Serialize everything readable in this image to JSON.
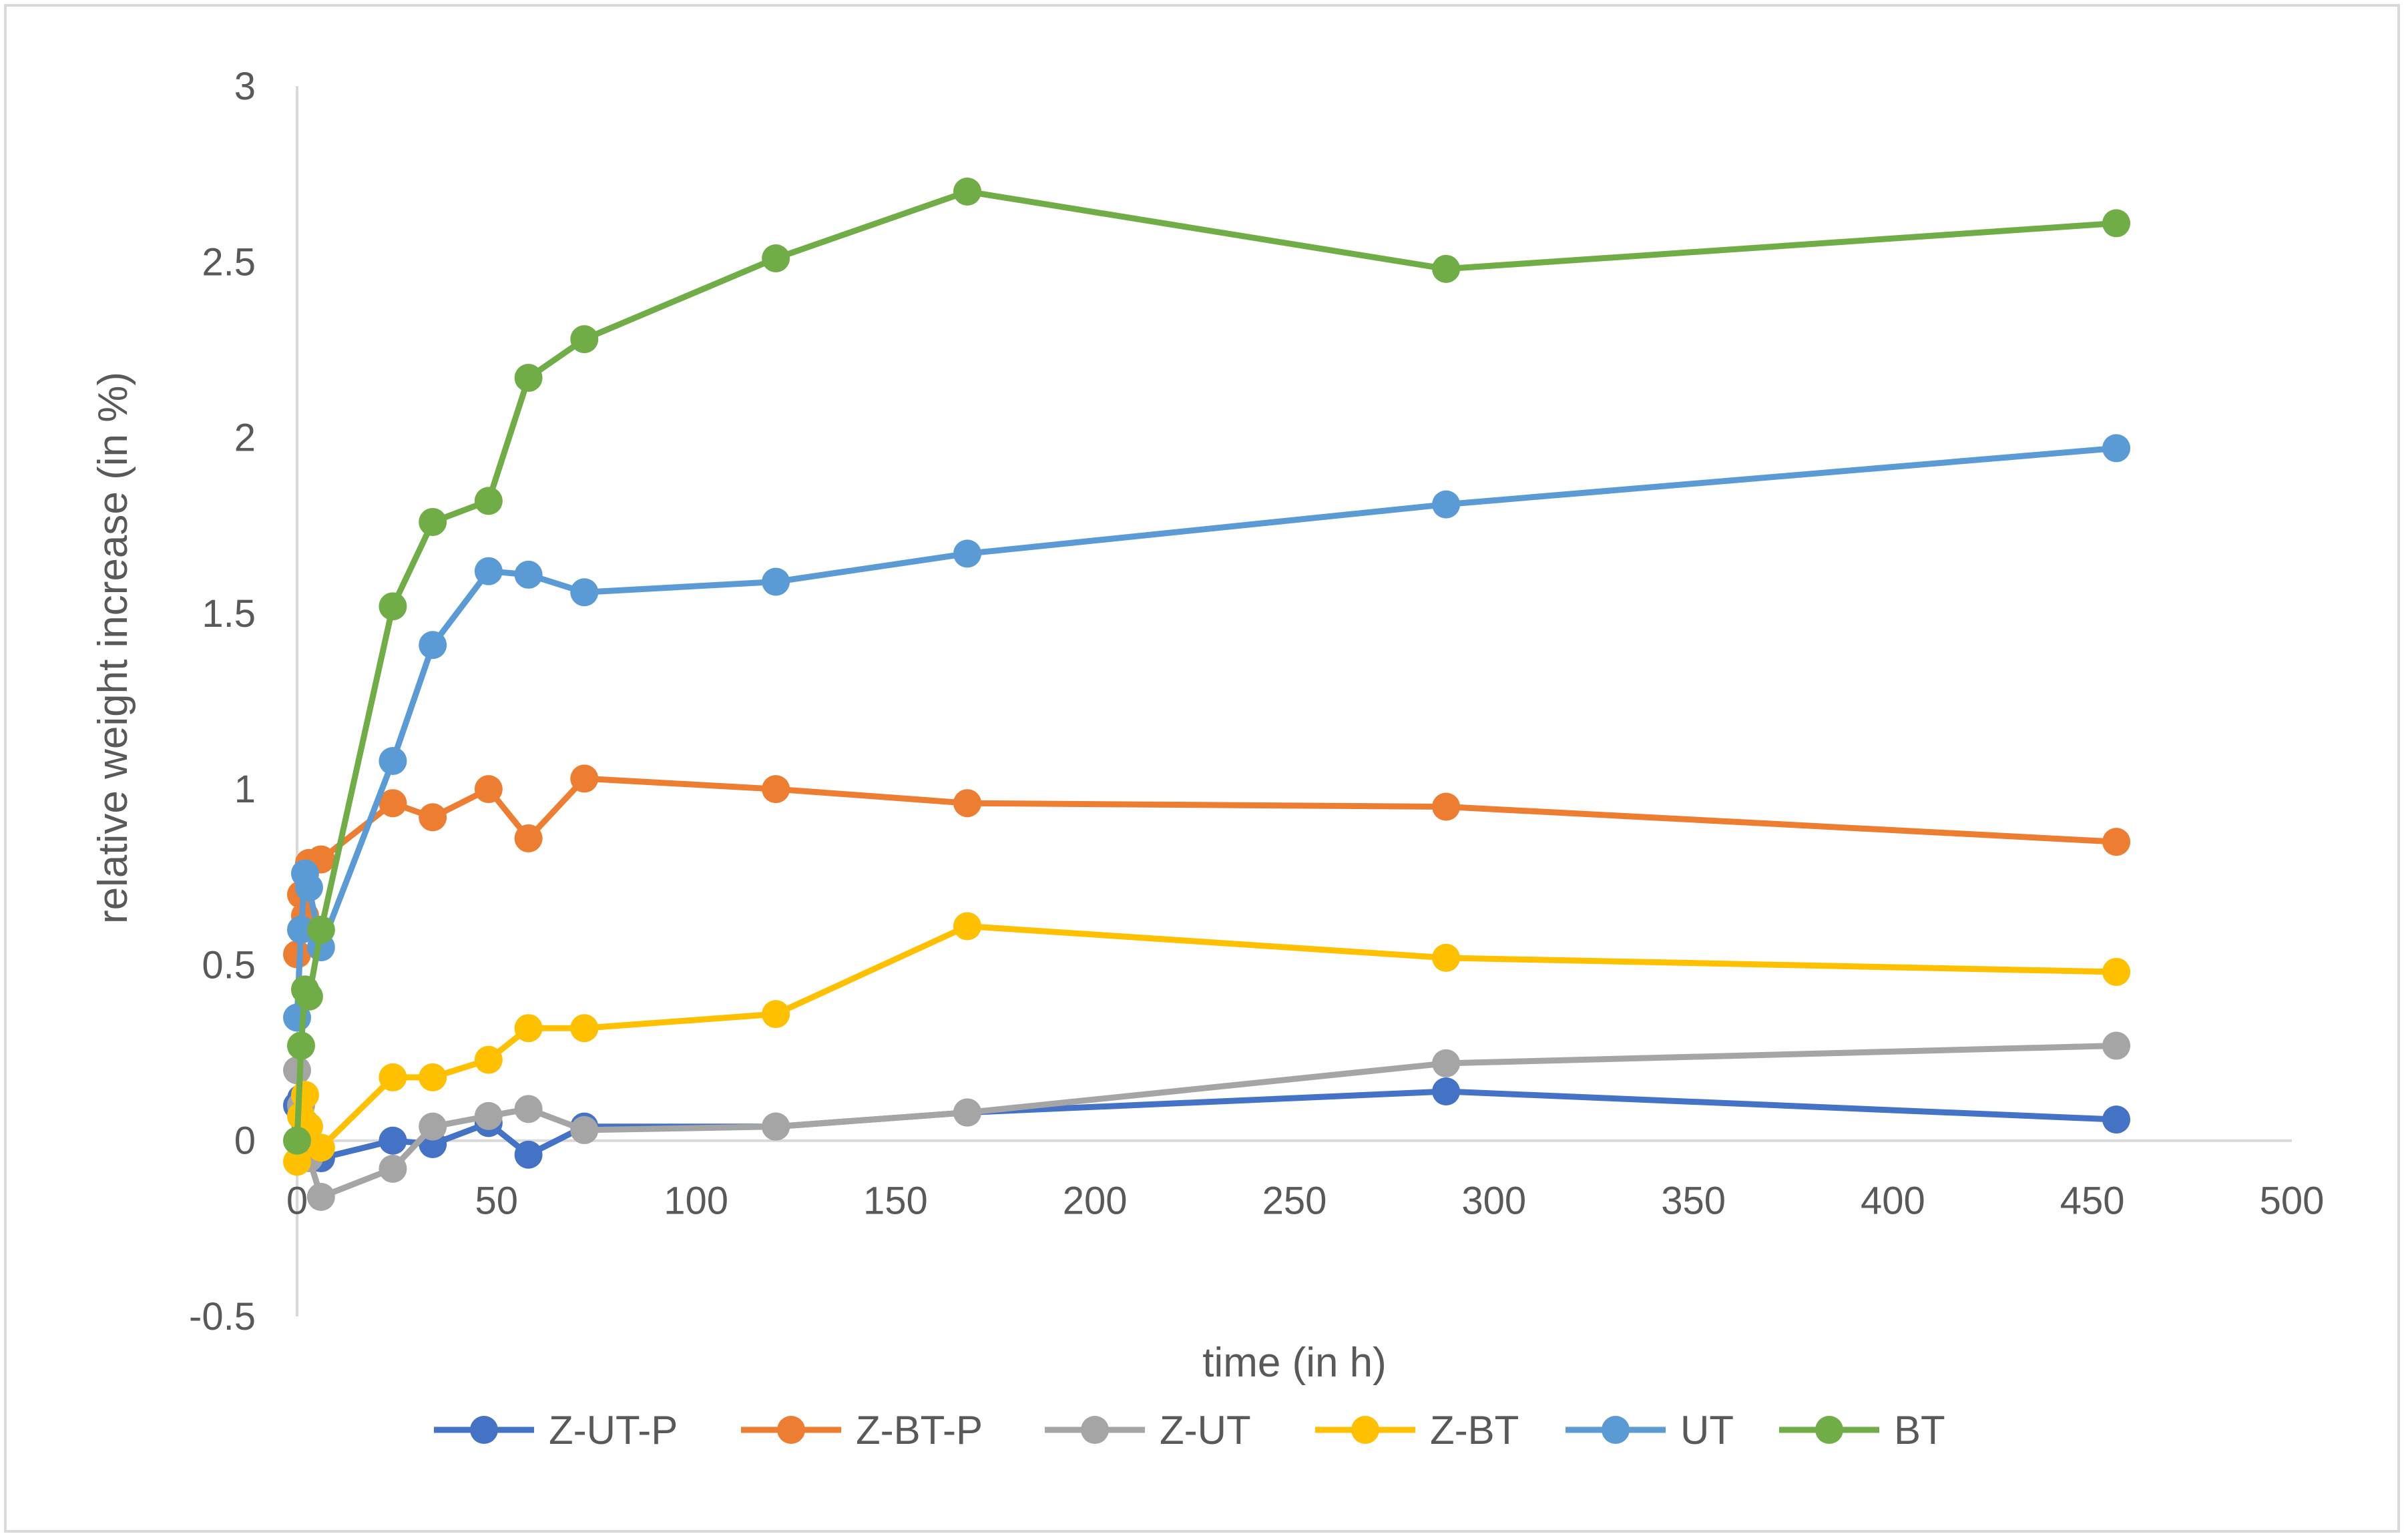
{
  "chart_data": {
    "type": "line",
    "title": "",
    "xlabel": "time (in h)",
    "ylabel": "relative weight increase (in %)",
    "xlim": [
      0,
      500
    ],
    "ylim": [
      -0.5,
      3
    ],
    "x_ticks": [
      0,
      50,
      100,
      150,
      200,
      250,
      300,
      350,
      400,
      450,
      500
    ],
    "x_tick_labels": [
      "0",
      "50",
      "100",
      "150",
      "200",
      "250",
      "300",
      "350",
      "400",
      "450",
      "500"
    ],
    "y_ticks": [
      -0.5,
      0,
      0.5,
      1,
      1.5,
      2,
      2.5,
      3
    ],
    "y_tick_labels": [
      "-0.5",
      "0",
      "0.5",
      "1",
      "1.5",
      "2",
      "2.5",
      "3"
    ],
    "grid": false,
    "legend_position": "bottom",
    "series": [
      {
        "name": "Z-UT-P",
        "color": "#4472C4",
        "x": [
          0,
          1,
          2,
          3,
          6,
          24,
          34,
          48,
          58,
          72,
          120,
          168,
          288,
          456
        ],
        "y": [
          0.1,
          0.12,
          0.05,
          -0.02,
          -0.05,
          0.0,
          -0.01,
          0.05,
          -0.04,
          0.04,
          0.04,
          0.08,
          0.14,
          0.06
        ]
      },
      {
        "name": "Z-BT-P",
        "color": "#ED7D31",
        "x": [
          0,
          1,
          2,
          3,
          6,
          24,
          34,
          48,
          58,
          72,
          120,
          168,
          288,
          456
        ],
        "y": [
          0.53,
          0.7,
          0.64,
          0.79,
          0.8,
          0.96,
          0.92,
          1.0,
          0.86,
          1.03,
          1.0,
          0.96,
          0.95,
          0.85
        ]
      },
      {
        "name": "Z-UT",
        "color": "#A5A5A5",
        "x": [
          0,
          1,
          2,
          3,
          6,
          24,
          34,
          48,
          58,
          72,
          120,
          168,
          288,
          456
        ],
        "y": [
          0.2,
          0.1,
          0.0,
          -0.05,
          -0.16,
          -0.08,
          0.04,
          0.07,
          0.09,
          0.03,
          0.04,
          0.08,
          0.22,
          0.27
        ]
      },
      {
        "name": "Z-BT",
        "color": "#FFC000",
        "x": [
          0,
          1,
          2,
          3,
          6,
          24,
          34,
          48,
          58,
          72,
          120,
          168,
          288,
          456
        ],
        "y": [
          -0.06,
          0.07,
          0.13,
          0.04,
          -0.02,
          0.18,
          0.18,
          0.23,
          0.32,
          0.32,
          0.36,
          0.61,
          0.52,
          0.48
        ]
      },
      {
        "name": "UT",
        "color": "#5B9BD5",
        "x": [
          0,
          1,
          2,
          3,
          6,
          24,
          34,
          48,
          58,
          72,
          120,
          168,
          288,
          456
        ],
        "y": [
          0.35,
          0.6,
          0.76,
          0.72,
          0.55,
          1.08,
          1.41,
          1.62,
          1.61,
          1.56,
          1.59,
          1.67,
          1.81,
          1.97
        ]
      },
      {
        "name": "BT",
        "color": "#70AD47",
        "x": [
          0,
          1,
          2,
          3,
          6,
          24,
          34,
          48,
          58,
          72,
          120,
          168,
          288,
          456
        ],
        "y": [
          0.0,
          0.27,
          0.43,
          0.41,
          0.6,
          1.52,
          1.76,
          1.82,
          2.17,
          2.28,
          2.51,
          2.7,
          2.48,
          2.61
        ]
      }
    ]
  }
}
